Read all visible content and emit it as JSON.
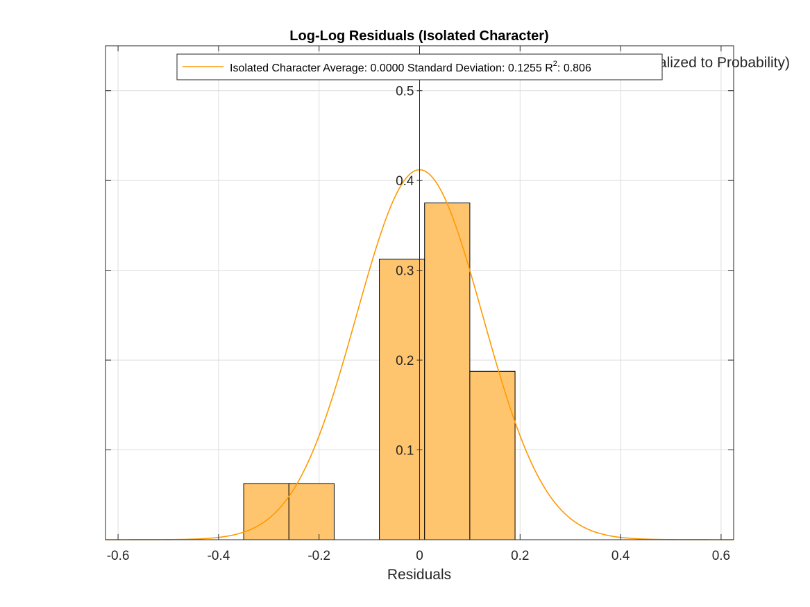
{
  "chart_data": {
    "type": "bar",
    "title": "Log-Log Residuals (Isolated Character)",
    "xlabel": "Residuals",
    "ylabel": "Frequency (Normalized to Probability)",
    "xlim": [
      -0.625,
      0.625
    ],
    "ylim": [
      0,
      0.55
    ],
    "grid": true,
    "axis_location": "origin",
    "legend_placement": "top",
    "colors": {
      "bar_fill": "#FFC266",
      "bar_edge": "#000000",
      "fit_line": "#FF9900",
      "grid": "#DDDDDD"
    },
    "x_ticks": [
      "-0.6",
      "-0.4",
      "-0.2",
      "0",
      "0.2",
      "0.4",
      "0.6"
    ],
    "y_ticks": [
      "0.1",
      "0.2",
      "0.3",
      "0.4",
      "0.5"
    ],
    "histogram": {
      "name": "",
      "bins": [
        {
          "x0": -0.35,
          "x1": -0.26,
          "value": 0.0625
        },
        {
          "x0": -0.26,
          "x1": -0.17,
          "value": 0.0625
        },
        {
          "x0": -0.17,
          "x1": -0.08,
          "value": 0.0
        },
        {
          "x0": -0.08,
          "x1": 0.01,
          "value": 0.3125
        },
        {
          "x0": 0.01,
          "x1": 0.1,
          "value": 0.375
        },
        {
          "x0": 0.1,
          "x1": 0.19,
          "value": 0.1875
        }
      ]
    },
    "fit": {
      "name": "Isolated Character",
      "mean": 0.0,
      "std": 0.1255,
      "peak": 0.412,
      "r_squared": 0.806
    },
    "legend": {
      "prefix": "Isolated Character Average: 0.0000 Standard Deviation: 0.1255 R",
      "superscript": "2",
      "suffix": ": 0.806"
    }
  }
}
